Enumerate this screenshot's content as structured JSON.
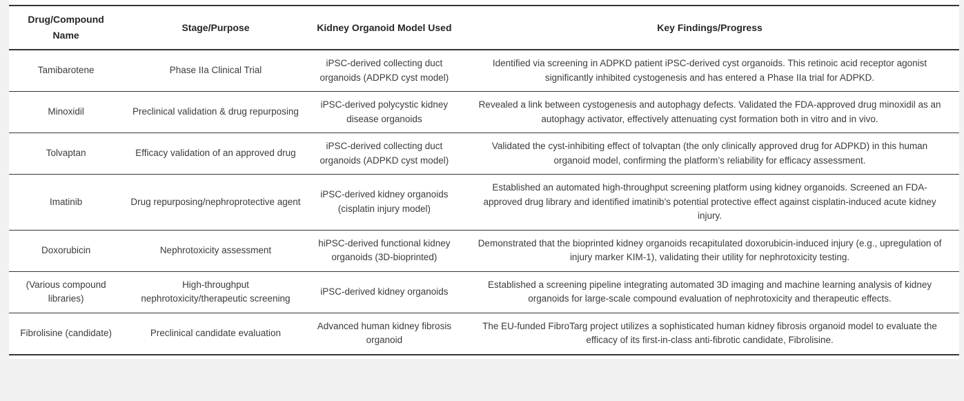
{
  "colors": {
    "page_bg": "#f1f1f1",
    "table_bg": "#ffffff",
    "border": "#333333",
    "text": "#3b3b3b",
    "header_text": "#262626"
  },
  "table": {
    "columns": [
      {
        "key": "drug",
        "label": "Drug/Compound Name"
      },
      {
        "key": "stage",
        "label": "Stage/Purpose"
      },
      {
        "key": "model",
        "label": "Kidney Organoid Model Used"
      },
      {
        "key": "findings",
        "label": "Key Findings/Progress"
      }
    ],
    "rows": [
      {
        "drug": "Tamibarotene",
        "stage": "Phase IIa Clinical Trial",
        "model": "iPSC-derived collecting duct organoids (ADPKD cyst model)",
        "findings": "Identified via screening in ADPKD patient iPSC-derived cyst organoids. This retinoic acid receptor agonist significantly inhibited cystogenesis and has entered a Phase IIa trial for ADPKD."
      },
      {
        "drug": "Minoxidil",
        "stage": "Preclinical validation & drug repurposing",
        "model": "iPSC-derived polycystic kidney disease organoids",
        "findings": "Revealed a link between cystogenesis and autophagy defects. Validated the FDA-approved drug minoxidil as an autophagy activator, effectively attenuating cyst formation both in vitro and in vivo."
      },
      {
        "drug": "Tolvaptan",
        "stage": "Efficacy validation of an approved drug",
        "model": "iPSC-derived collecting duct organoids (ADPKD cyst model)",
        "findings": "Validated the cyst-inhibiting effect of tolvaptan (the only clinically approved drug for ADPKD) in this human organoid model, confirming the platform’s reliability for efficacy assessment."
      },
      {
        "drug": "Imatinib",
        "stage": "Drug repurposing/nephroprotective agent",
        "model": "iPSC-derived kidney organoids (cisplatin injury model)",
        "findings": "Established an automated high-throughput screening platform using kidney organoids. Screened an FDA-approved drug library and identified imatinib’s potential protective effect against cisplatin-induced acute kidney injury."
      },
      {
        "drug": "Doxorubicin",
        "stage": "Nephrotoxicity assessment",
        "model": "hiPSC-derived functional kidney organoids (3D-bioprinted)",
        "findings": "Demonstrated that the bioprinted kidney organoids recapitulated doxorubicin-induced injury (e.g., upregulation of injury marker KIM-1), validating their utility for nephrotoxicity testing."
      },
      {
        "drug": "(Various compound libraries)",
        "stage": "High-throughput nephrotoxicity/therapeutic screening",
        "model": "iPSC-derived kidney organoids",
        "findings": "Established a screening pipeline integrating automated 3D imaging and machine learning analysis of kidney organoids for large-scale compound evaluation of nephrotoxicity and therapeutic effects."
      },
      {
        "drug": "Fibrolisine (candidate)",
        "stage": "Preclinical candidate evaluation",
        "model": "Advanced human kidney fibrosis organoid",
        "findings": "The EU-funded FibroTarg project utilizes a sophisticated human kidney fibrosis organoid model to evaluate the efficacy of its first-in-class anti-fibrotic candidate, Fibrolisine."
      }
    ]
  }
}
